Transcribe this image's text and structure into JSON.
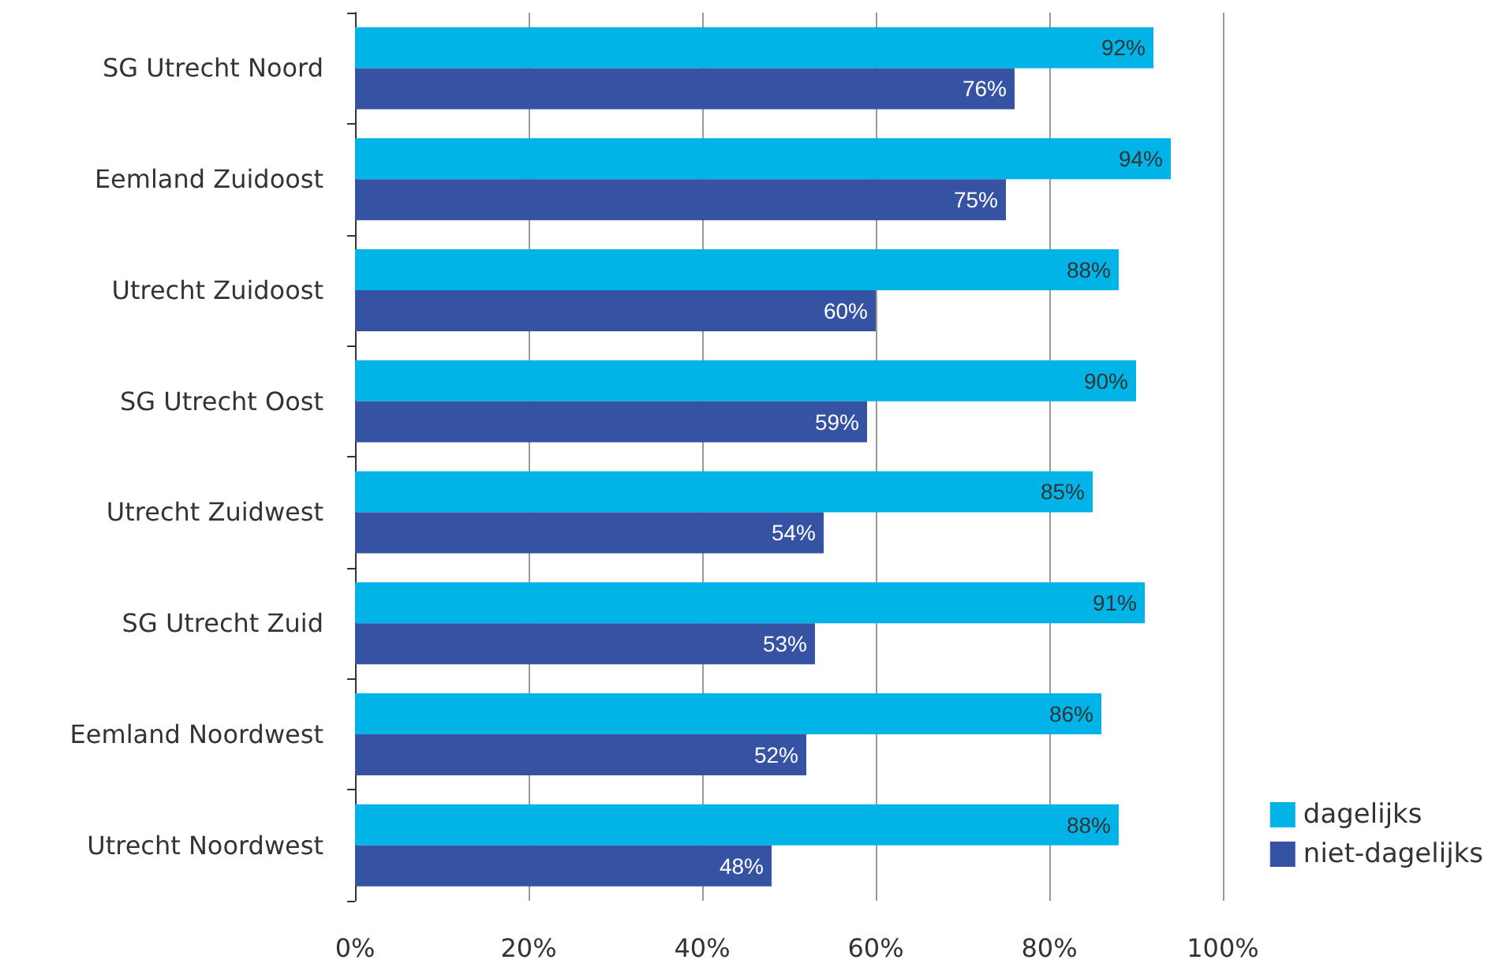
{
  "chart_data": {
    "type": "bar",
    "orientation": "horizontal",
    "categories": [
      "SG Utrecht Noord",
      "Eemland Zuidoost",
      "Utrecht Zuidoost",
      "SG Utrecht Oost",
      "Utrecht Zuidwest",
      "SG Utrecht Zuid",
      "Eemland Noordwest",
      "Utrecht Noordwest"
    ],
    "series": [
      {
        "name": "dagelijks",
        "color": "#00b4e8",
        "values": [
          92,
          94,
          88,
          90,
          85,
          91,
          86,
          88
        ],
        "value_labels": [
          "92%",
          "94%",
          "88%",
          "90%",
          "85%",
          "91%",
          "86%",
          "88%"
        ]
      },
      {
        "name": "niet-dagelijks",
        "color": "#3553a2",
        "values": [
          76,
          75,
          60,
          59,
          54,
          53,
          52,
          48
        ],
        "value_labels": [
          "76%",
          "75%",
          "60%",
          "59%",
          "54%",
          "53%",
          "52%",
          "48%"
        ]
      }
    ],
    "xlim": [
      0,
      100
    ],
    "xticks": [
      {
        "value": 0,
        "label": "0%"
      },
      {
        "value": 20,
        "label": "20%"
      },
      {
        "value": 40,
        "label": "40%"
      },
      {
        "value": 60,
        "label": "60%"
      },
      {
        "value": 80,
        "label": "80%"
      },
      {
        "value": 100,
        "label": "100%"
      }
    ],
    "grid": "x",
    "legend": "bottom right"
  }
}
